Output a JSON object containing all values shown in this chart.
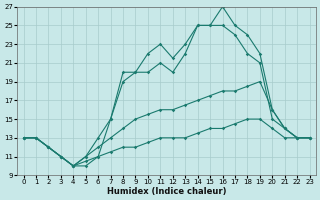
{
  "xlabel": "Humidex (Indice chaleur)",
  "xlim": [
    -0.5,
    23.5
  ],
  "ylim": [
    9,
    27
  ],
  "xticks": [
    0,
    1,
    2,
    3,
    4,
    5,
    6,
    7,
    8,
    9,
    10,
    11,
    12,
    13,
    14,
    15,
    16,
    17,
    18,
    19,
    20,
    21,
    22,
    23
  ],
  "yticks": [
    9,
    11,
    13,
    15,
    17,
    19,
    21,
    23,
    25,
    27
  ],
  "bg_color": "#c8e8e8",
  "grid_color": "#a8cccc",
  "line_color": "#1a7a6e",
  "series": [
    {
      "x": [
        0,
        1,
        2,
        3,
        4,
        5,
        6,
        7,
        8,
        9,
        10,
        11,
        12,
        13,
        14,
        15,
        16,
        17,
        18,
        19,
        20,
        21,
        22,
        23
      ],
      "y": [
        13,
        13,
        12,
        11,
        10,
        10.5,
        11,
        11.5,
        12,
        12,
        12.5,
        13,
        13,
        13,
        13.5,
        14,
        14,
        14.5,
        15,
        15,
        14,
        13,
        13,
        13
      ]
    },
    {
      "x": [
        0,
        1,
        2,
        3,
        4,
        5,
        6,
        7,
        8,
        9,
        10,
        11,
        12,
        13,
        14,
        15,
        16,
        17,
        18,
        19,
        20,
        21,
        22,
        23
      ],
      "y": [
        13,
        13,
        12,
        11,
        10,
        11,
        12,
        13,
        14,
        15,
        15.5,
        16,
        16,
        16.5,
        17,
        17.5,
        18,
        18,
        18.5,
        19,
        16,
        14,
        13,
        13
      ]
    },
    {
      "x": [
        0,
        1,
        2,
        3,
        4,
        5,
        6,
        7,
        8,
        9,
        10,
        11,
        12,
        13,
        14,
        15,
        16,
        17,
        18,
        19,
        20,
        21,
        22,
        23
      ],
      "y": [
        13,
        13,
        12,
        11,
        10,
        11,
        13,
        15,
        20,
        20,
        22,
        23,
        21.5,
        23,
        25,
        25,
        27,
        25,
        24,
        22,
        16,
        14,
        13,
        13
      ]
    },
    {
      "x": [
        0,
        1,
        2,
        3,
        4,
        5,
        6,
        7,
        8,
        9,
        10,
        11,
        12,
        13,
        14,
        15,
        16,
        17,
        18,
        19,
        20,
        21,
        22,
        23
      ],
      "y": [
        13,
        13,
        12,
        11,
        10,
        10,
        11,
        15,
        19,
        20,
        20,
        21,
        20,
        22,
        25,
        25,
        25,
        24,
        22,
        21,
        15,
        14,
        13,
        13
      ]
    }
  ]
}
